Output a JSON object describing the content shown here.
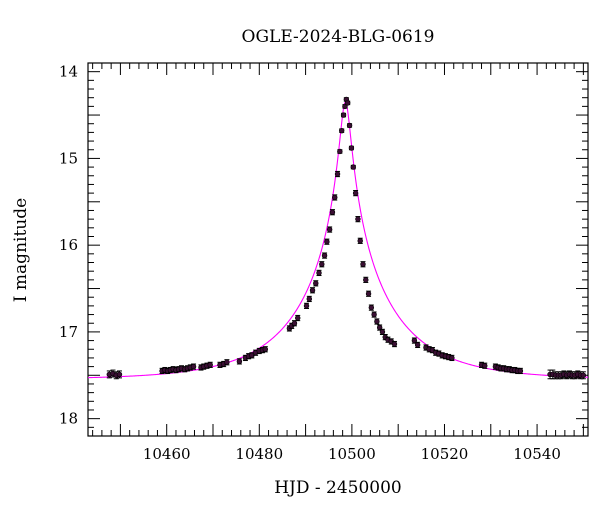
{
  "chart_data": {
    "type": "scatter",
    "title": "OGLE-2024-BLG-0619",
    "xlabel": "HJD - 2450000",
    "ylabel": "I magnitude",
    "xlim": [
      10443,
      10551
    ],
    "ylim": [
      18.2,
      13.9
    ],
    "y_inverted": true,
    "grid": false,
    "x_ticks": [
      10460,
      10480,
      10500,
      10520,
      10540
    ],
    "y_ticks": [
      14,
      15,
      16,
      17,
      18
    ],
    "series": [
      {
        "kind": "points_with_errorbars",
        "color": "#000000",
        "x": [
          10447.6,
          10448.4,
          10449.1,
          10449.8,
          10459.0,
          10459.6,
          10460.2,
          10460.8,
          10461.4,
          10462.0,
          10462.6,
          10463.2,
          10463.9,
          10464.5,
          10465.1,
          10465.8,
          10467.4,
          10468.0,
          10468.7,
          10469.4,
          10471.5,
          10472.3,
          10473.0,
          10475.7,
          10477.0,
          10477.7,
          10478.4,
          10479.2,
          10480.0,
          10480.7,
          10481.3,
          10486.5,
          10487.0,
          10487.6,
          10488.3,
          10490.2,
          10490.8,
          10491.5,
          10492.2,
          10492.9,
          10493.5,
          10494.1,
          10494.6,
          10495.2,
          10495.8,
          10496.3,
          10496.9,
          10497.4,
          10497.8,
          10498.2,
          10498.5,
          10498.8,
          10499.1,
          10499.5,
          10499.9,
          10500.3,
          10500.8,
          10501.3,
          10501.8,
          10502.4,
          10503.0,
          10503.6,
          10504.2,
          10504.8,
          10505.4,
          10506.0,
          10506.6,
          10507.2,
          10507.8,
          10508.5,
          10509.2,
          10513.5,
          10514.2,
          10516.0,
          10516.7,
          10517.4,
          10518.1,
          10518.8,
          10519.5,
          10520.2,
          10520.9,
          10521.6,
          10528.0,
          10528.7,
          10531.0,
          10531.6,
          10532.2,
          10532.8,
          10533.4,
          10534.0,
          10534.6,
          10535.2,
          10535.8,
          10536.4,
          10542.8,
          10543.4,
          10544.0,
          10544.6,
          10545.2,
          10545.8,
          10546.4,
          10547.0,
          10547.6,
          10548.2,
          10548.8,
          10549.4,
          10550.0
        ],
        "y": [
          17.49,
          17.48,
          17.5,
          17.49,
          17.45,
          17.44,
          17.45,
          17.44,
          17.43,
          17.44,
          17.43,
          17.42,
          17.43,
          17.42,
          17.41,
          17.4,
          17.41,
          17.4,
          17.39,
          17.38,
          17.38,
          17.37,
          17.35,
          17.34,
          17.3,
          17.28,
          17.27,
          17.24,
          17.22,
          17.21,
          17.2,
          16.96,
          16.93,
          16.9,
          16.84,
          16.7,
          16.62,
          16.52,
          16.44,
          16.32,
          16.22,
          16.12,
          15.96,
          15.82,
          15.62,
          15.45,
          15.18,
          14.92,
          14.68,
          14.5,
          14.4,
          14.32,
          14.36,
          14.62,
          14.88,
          15.1,
          15.4,
          15.7,
          15.95,
          16.22,
          16.4,
          16.56,
          16.72,
          16.8,
          16.88,
          16.95,
          17.0,
          17.06,
          17.09,
          17.11,
          17.14,
          17.1,
          17.15,
          17.18,
          17.2,
          17.21,
          17.24,
          17.25,
          17.27,
          17.28,
          17.29,
          17.3,
          17.38,
          17.39,
          17.4,
          17.41,
          17.42,
          17.42,
          17.43,
          17.43,
          17.44,
          17.44,
          17.45,
          17.45,
          17.49,
          17.49,
          17.5,
          17.5,
          17.5,
          17.49,
          17.5,
          17.49,
          17.5,
          17.5,
          17.49,
          17.5,
          17.5
        ],
        "yerr": [
          0.04,
          0.04,
          0.04,
          0.04,
          0.03,
          0.03,
          0.03,
          0.03,
          0.03,
          0.03,
          0.03,
          0.03,
          0.03,
          0.03,
          0.03,
          0.03,
          0.03,
          0.03,
          0.03,
          0.03,
          0.03,
          0.03,
          0.03,
          0.03,
          0.03,
          0.03,
          0.03,
          0.03,
          0.03,
          0.03,
          0.03,
          0.03,
          0.03,
          0.03,
          0.03,
          0.03,
          0.03,
          0.03,
          0.03,
          0.03,
          0.03,
          0.03,
          0.03,
          0.03,
          0.03,
          0.03,
          0.03,
          0.02,
          0.02,
          0.02,
          0.02,
          0.02,
          0.02,
          0.02,
          0.02,
          0.02,
          0.03,
          0.03,
          0.03,
          0.03,
          0.03,
          0.03,
          0.03,
          0.03,
          0.03,
          0.03,
          0.03,
          0.03,
          0.03,
          0.03,
          0.03,
          0.03,
          0.03,
          0.03,
          0.03,
          0.03,
          0.03,
          0.03,
          0.03,
          0.03,
          0.03,
          0.03,
          0.03,
          0.03,
          0.03,
          0.03,
          0.03,
          0.03,
          0.03,
          0.03,
          0.03,
          0.03,
          0.03,
          0.03,
          0.05,
          0.05,
          0.04,
          0.04,
          0.04,
          0.04,
          0.04,
          0.04,
          0.04,
          0.04,
          0.04,
          0.04,
          0.04
        ]
      },
      {
        "kind": "model_curve",
        "color": "#ff00ff",
        "t0": 10498.6,
        "u0": 0.0,
        "tE": 19.5,
        "baseline_mag": 17.55,
        "peak_mag": 14.35
      }
    ]
  }
}
